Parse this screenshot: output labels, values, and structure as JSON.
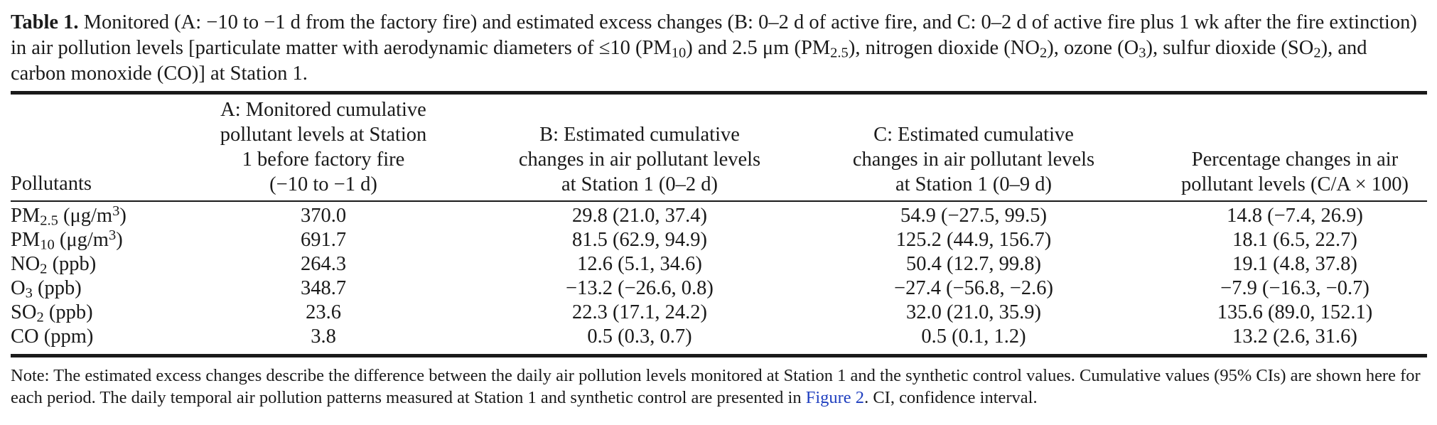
{
  "caption": {
    "label": "Table 1.",
    "seg1": " Monitored (A: −10 to −1 d from the factory fire) and estimated excess changes (B: 0–2 d of active fire, and C: 0–2 d of active fire plus 1 wk after the fire extinction) in air pollution levels [particulate matter with aerodynamic diameters of ≤10 (PM",
    "sub1": "10",
    "seg2": ") and 2.5 μm (PM",
    "sub2": "2.5",
    "seg3": "), nitrogen dioxide (NO",
    "sub3": "2",
    "seg4": "), ozone (O",
    "sub4": "3",
    "seg5": "), sulfur dioxide (SO",
    "sub5": "2",
    "seg6": "), and carbon monoxide (CO)] at Station 1."
  },
  "table": {
    "headers": {
      "pollutants": "Pollutants",
      "a": [
        "A: Monitored cumulative",
        "pollutant levels at Station",
        "1 before factory fire",
        "(−10 to −1 d)"
      ],
      "b": [
        "B: Estimated cumulative",
        "changes in air pollutant levels",
        "at Station 1 (0–2 d)"
      ],
      "c": [
        "C: Estimated cumulative",
        "changes in air pollutant levels",
        "at Station 1 (0–9 d)"
      ],
      "pct": [
        "Percentage changes in air",
        "pollutant levels (C/A × 100)"
      ]
    },
    "rows": [
      {
        "base": "PM",
        "sub": "2.5",
        "unit_pre": " (μg/m",
        "sup": "3",
        "unit_post": ")",
        "a": "370.0",
        "b": "29.8 (21.0, 37.4)",
        "c": "54.9 (−27.5, 99.5)",
        "pct": "14.8 (−7.4, 26.9)"
      },
      {
        "base": "PM",
        "sub": "10",
        "unit_pre": " (μg/m",
        "sup": "3",
        "unit_post": ")",
        "a": "691.7",
        "b": "81.5 (62.9, 94.9)",
        "c": "125.2 (44.9, 156.7)",
        "pct": "18.1 (6.5, 22.7)"
      },
      {
        "base": "NO",
        "sub": "2",
        "unit_pre": " (ppb)",
        "sup": "",
        "unit_post": "",
        "a": "264.3",
        "b": "12.6 (5.1, 34.6)",
        "c": "50.4 (12.7, 99.8)",
        "pct": "19.1 (4.8, 37.8)"
      },
      {
        "base": "O",
        "sub": "3",
        "unit_pre": " (ppb)",
        "sup": "",
        "unit_post": "",
        "a": "348.7",
        "b": "−13.2 (−26.6, 0.8)",
        "c": "−27.4 (−56.8, −2.6)",
        "pct": "−7.9 (−16.3, −0.7)"
      },
      {
        "base": "SO",
        "sub": "2",
        "unit_pre": " (ppb)",
        "sup": "",
        "unit_post": "",
        "a": "23.6",
        "b": "22.3 (17.1, 24.2)",
        "c": "32.0 (21.0, 35.9)",
        "pct": "135.6 (89.0, 152.1)"
      },
      {
        "base": "CO",
        "sub": "",
        "unit_pre": " (ppm)",
        "sup": "",
        "unit_post": "",
        "a": "3.8",
        "b": "0.5 (0.3, 0.7)",
        "c": "0.5 (0.1, 1.2)",
        "pct": "13.2 (2.6, 31.6)"
      }
    ]
  },
  "note": {
    "text1": "Note: The estimated excess changes describe the difference between the daily air pollution levels monitored at Station 1 and the synthetic control values. Cumulative values (95% CIs) are shown here for each period. The daily temporal air pollution patterns measured at Station 1 and synthetic control are presented in ",
    "link": "Figure 2",
    "text2": ". CI, confidence interval.",
    "link_color": "#1f3fbf"
  }
}
